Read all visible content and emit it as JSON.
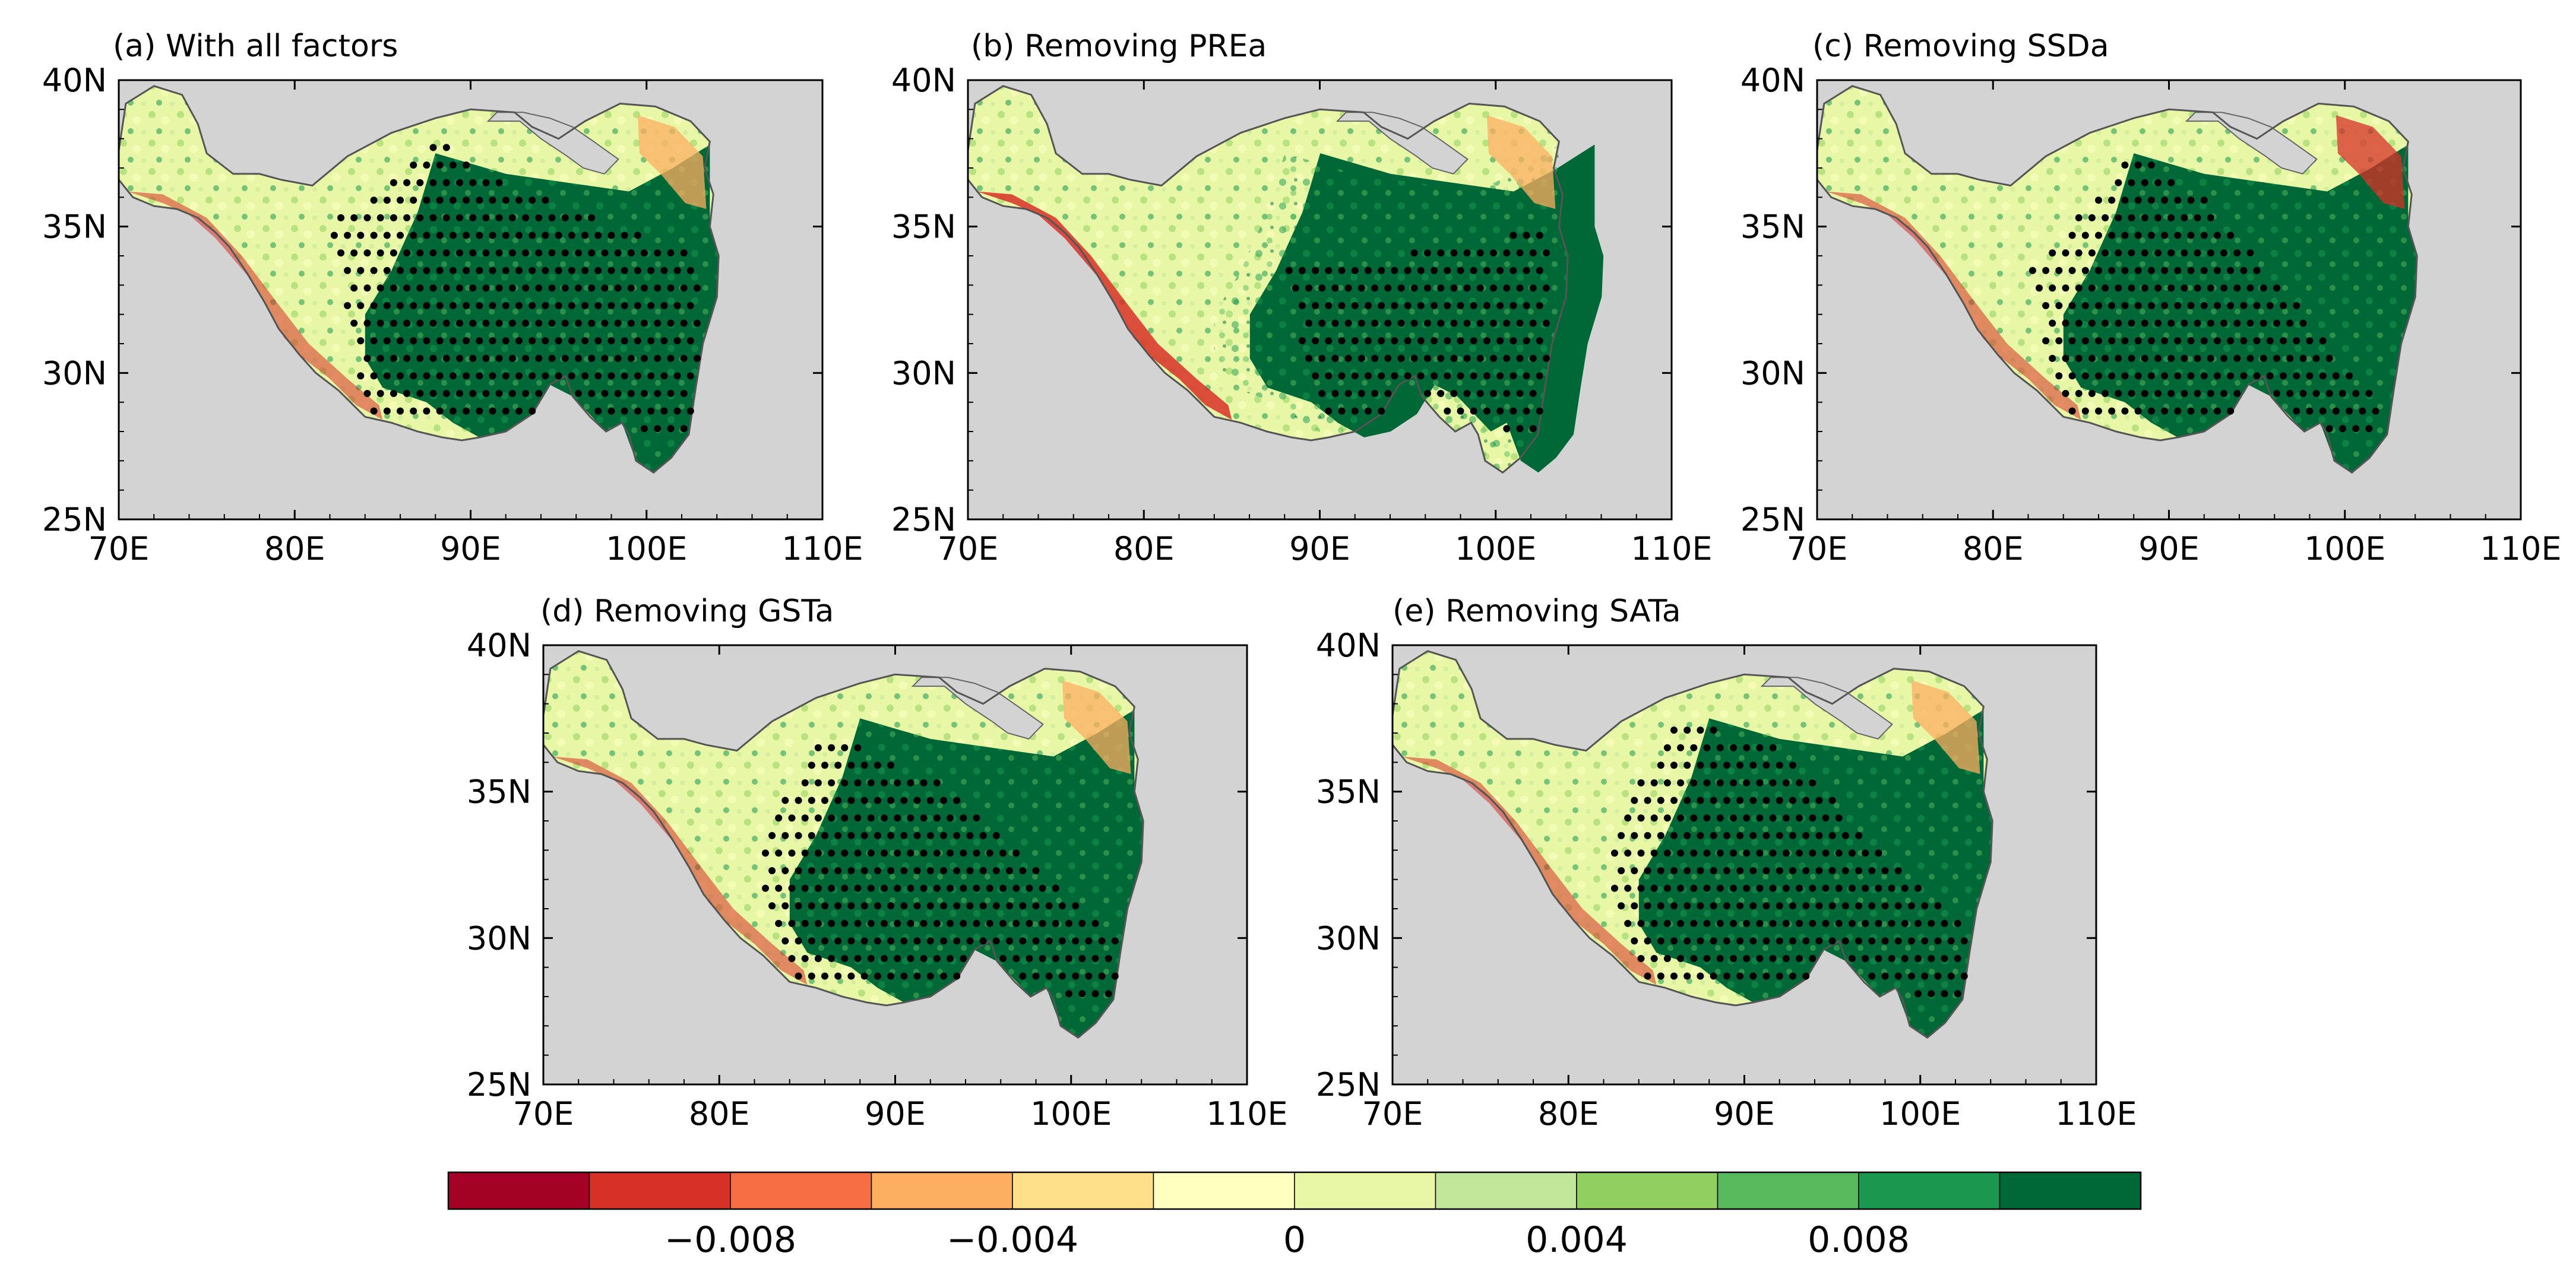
{
  "figure": {
    "panels": [
      {
        "id": "a",
        "title": "(a) With all factors"
      },
      {
        "id": "b",
        "title": "(b) Removing PREa"
      },
      {
        "id": "c",
        "title": "(c) Removing SSDa"
      },
      {
        "id": "d",
        "title": "(d) Removing GSTa"
      },
      {
        "id": "e",
        "title": "(e) Removing SATa"
      }
    ],
    "lon_ticks": [
      "70E",
      "80E",
      "90E",
      "100E",
      "110E"
    ],
    "lat_ticks": [
      "40N",
      "35N",
      "30N",
      "25N"
    ],
    "lon_range": [
      70,
      110
    ],
    "lat_range": [
      25,
      40
    ],
    "colorbar": {
      "labels": [
        "−0.008",
        "−0.004",
        "0",
        "0.004",
        "0.008"
      ],
      "label_values": [
        -0.008,
        -0.004,
        0,
        0.004,
        0.008
      ],
      "boundaries": [
        -0.01,
        -0.008,
        -0.006,
        -0.004,
        -0.002,
        0,
        0.002,
        0.004,
        0.006,
        0.008,
        0.01
      ],
      "colors": [
        "#a50026",
        "#d73027",
        "#f46d43",
        "#fdae61",
        "#fee08b",
        "#ffffbf",
        "#e7f7a6",
        "#c2e699",
        "#91cf60",
        "#57b85c",
        "#1a9850",
        "#006837"
      ]
    },
    "style": {
      "ocean_bg": "#d3d3d3",
      "lake": "#d3d3d3",
      "stipple": "#000000"
    }
  }
}
